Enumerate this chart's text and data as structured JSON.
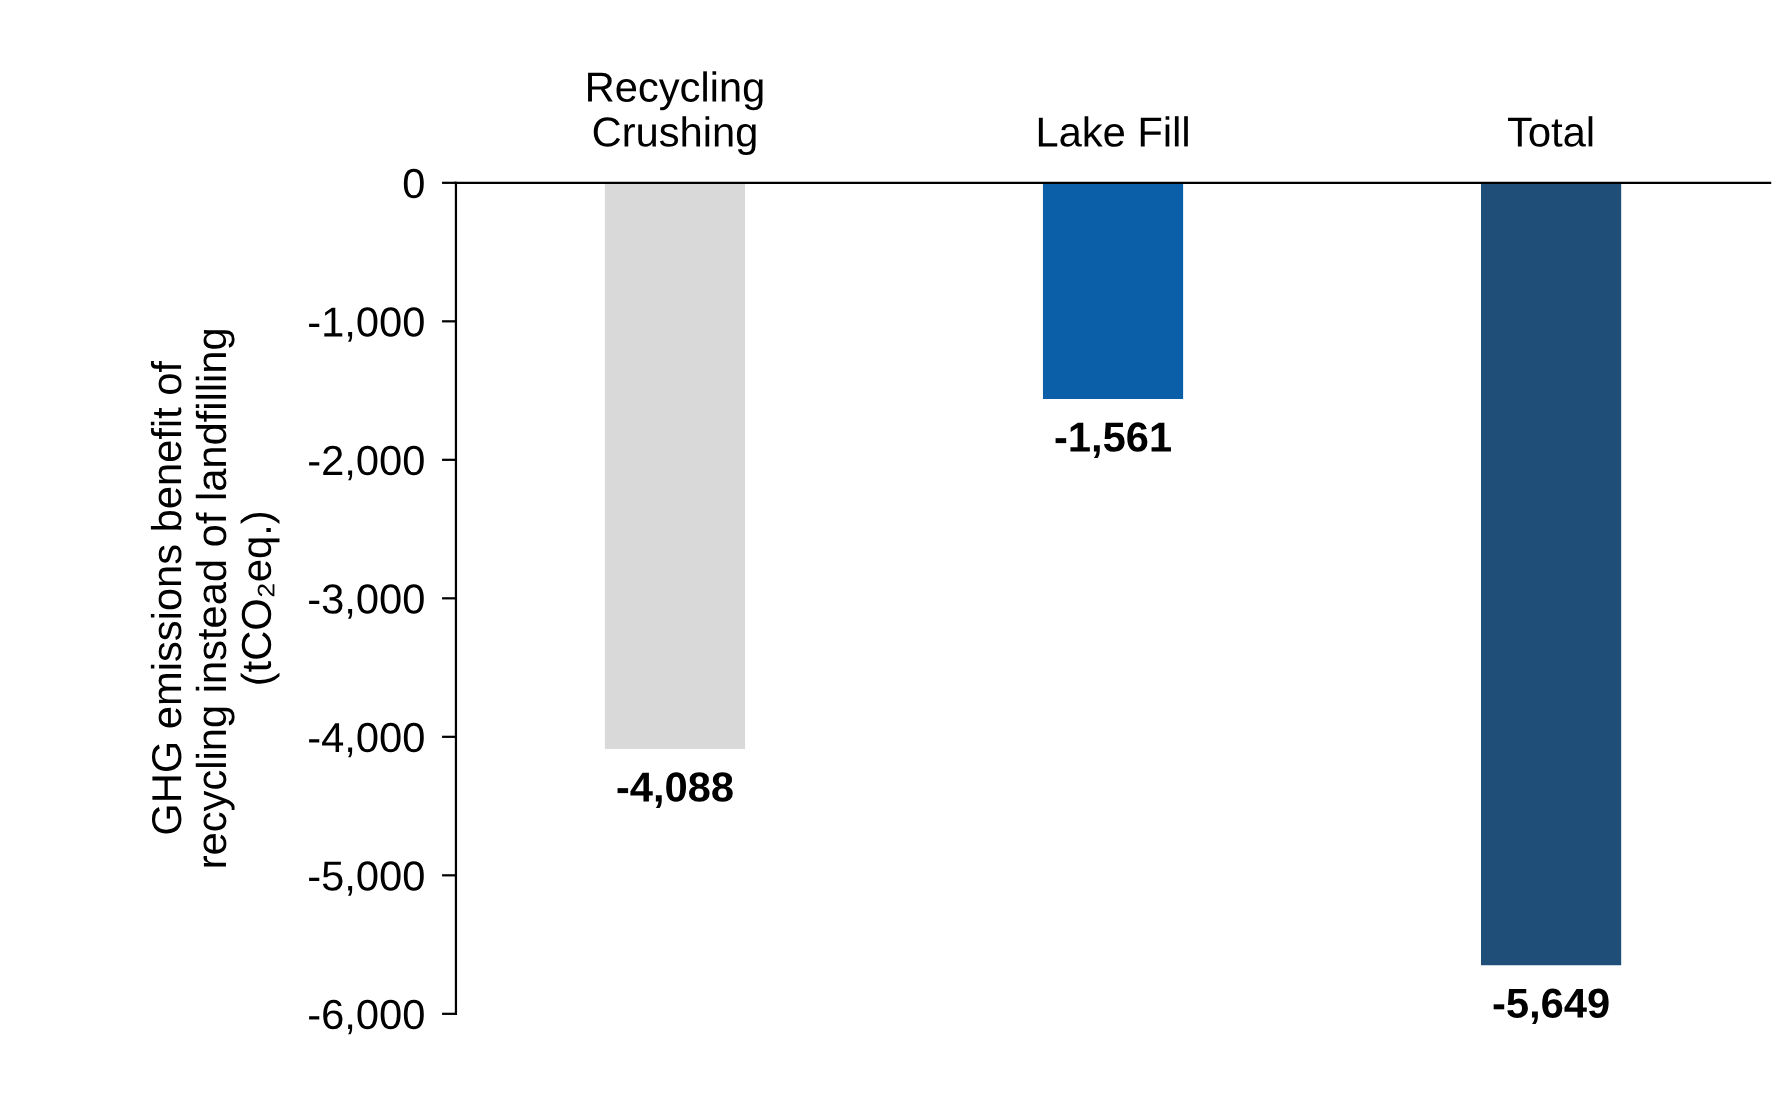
{
  "chart_data": {
    "type": "bar",
    "categories": [
      "Recycling\nCrushing",
      "Lake Fill",
      "Total"
    ],
    "values": [
      -4088,
      -1561,
      -5649
    ],
    "colors": [
      "#d9d9d9",
      "#0a5fa8",
      "#1f4e79"
    ],
    "value_labels": [
      "-4,088",
      "-1,561",
      "-5,649"
    ],
    "ylabel": "GHG emissions benefit of\nrecycling instead of landfilling\n(tCO₂eq.)",
    "ylim": [
      -6000,
      0
    ],
    "yticks": [
      0,
      {
        "value": -1000,
        "label": "-1,000"
      },
      {
        "value": -2000,
        "label": "-2,000"
      },
      {
        "value": -3000,
        "label": "-3,000"
      },
      {
        "value": -4000,
        "label": "-4,000"
      },
      {
        "value": -5000,
        "label": "-5,000"
      },
      {
        "value": -6000,
        "label": "-6,000"
      }
    ]
  }
}
